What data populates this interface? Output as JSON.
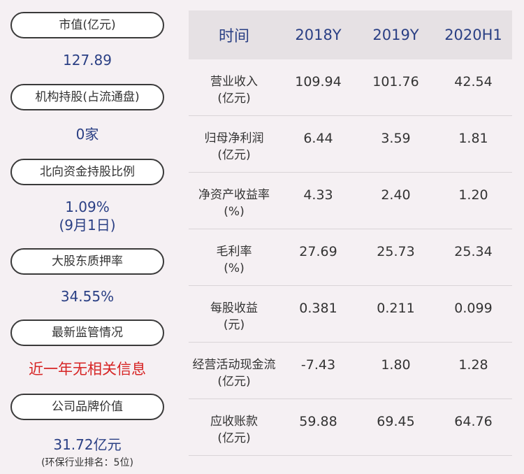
{
  "left": {
    "items": [
      {
        "label": "市值(亿元)",
        "value": "127.89"
      },
      {
        "label": "机构持股(占流通盘)",
        "value": "0家"
      },
      {
        "label": "北向资金持股比例",
        "value": "1.09%",
        "value2": "(9月1日)"
      },
      {
        "label": "大股东质押率",
        "value": "34.55%"
      },
      {
        "label": "最新监管情况",
        "value": "近一年无相关信息"
      },
      {
        "label": "公司品牌价值",
        "value": "31.72亿元",
        "note": "(环保行业排名：5位)"
      }
    ]
  },
  "table": {
    "header": {
      "col0": "时间",
      "col1": "2018Y",
      "col2": "2019Y",
      "col3": "2020H1"
    },
    "rows": [
      {
        "label": "营业收入",
        "unit": "(亿元)",
        "v1": "109.94",
        "v2": "101.76",
        "v3": "42.54"
      },
      {
        "label": "归母净利润",
        "unit": "(亿元)",
        "v1": "6.44",
        "v2": "3.59",
        "v3": "1.81"
      },
      {
        "label": "净资产收益率",
        "unit": "(%)",
        "v1": "4.33",
        "v2": "2.40",
        "v3": "1.20"
      },
      {
        "label": "毛利率",
        "unit": "(%)",
        "v1": "27.69",
        "v2": "25.73",
        "v3": "25.34"
      },
      {
        "label": "每股收益",
        "unit": "(元)",
        "v1": "0.381",
        "v2": "0.211",
        "v3": "0.099"
      },
      {
        "label": "经营活动现金流",
        "unit": "(亿元)",
        "v1": "-7.43",
        "v2": "1.80",
        "v3": "1.28"
      },
      {
        "label": "应收账款",
        "unit": "(亿元)",
        "v1": "59.88",
        "v2": "69.45",
        "v3": "64.76"
      }
    ]
  },
  "colors": {
    "accent": "#2a3f84",
    "alert": "#d62424",
    "background": "#f5f0f3"
  }
}
